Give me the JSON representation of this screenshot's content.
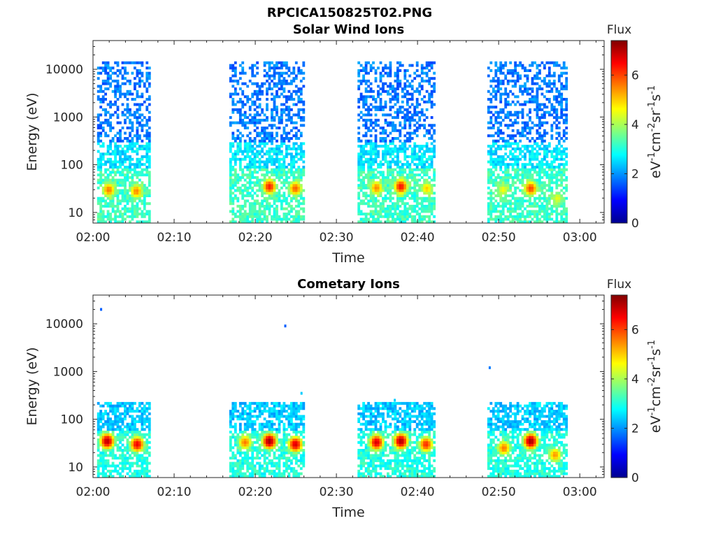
{
  "figure": {
    "title": "RPCICA150825T02.PNG",
    "colormap": [
      "#00008f",
      "#0000ff",
      "#0080ff",
      "#00ffff",
      "#80ff80",
      "#ffff00",
      "#ff8000",
      "#ff0000",
      "#800000"
    ]
  },
  "chart_data": [
    {
      "type": "heatmap",
      "title": "Solar Wind Ions",
      "xlabel": "Time",
      "ylabel": "Energy (eV)",
      "x_ticks": [
        "02:00",
        "02:10",
        "02:20",
        "02:30",
        "02:40",
        "02:50",
        "03:00"
      ],
      "x_range_minutes": [
        0,
        63
      ],
      "y_scale": "log",
      "y_ticks": [
        10,
        100,
        1000,
        10000
      ],
      "y_tick_labels": [
        "10",
        "100",
        "1000",
        "10000"
      ],
      "y_range": [
        6,
        40000
      ],
      "colorbar": {
        "label": "Flux",
        "units": "eV-1cm-2sr-1s-1",
        "ticks": [
          0,
          2,
          4,
          6
        ],
        "range": [
          0,
          7.4
        ]
      },
      "data_blocks_minutes": [
        [
          0.5,
          6.8
        ],
        [
          16.8,
          26.1
        ],
        [
          32.6,
          42.0
        ],
        [
          48.6,
          58.3
        ]
      ],
      "background_levels": [
        {
          "energy_range_eV": [
            300,
            15000
          ],
          "flux": 1.8
        },
        {
          "energy_range_eV": [
            80,
            300
          ],
          "flux": 2.6
        },
        {
          "energy_range_eV": [
            6,
            80
          ],
          "flux": 3.2
        }
      ],
      "peaks": [
        {
          "time_min": 1.8,
          "energy_eV": 30,
          "flux": 5.6
        },
        {
          "time_min": 5.2,
          "energy_eV": 28,
          "flux": 5.5
        },
        {
          "time_min": 21.6,
          "energy_eV": 35,
          "flux": 6.3
        },
        {
          "time_min": 24.8,
          "energy_eV": 32,
          "flux": 5.8
        },
        {
          "time_min": 34.8,
          "energy_eV": 33,
          "flux": 5.5
        },
        {
          "time_min": 37.8,
          "energy_eV": 35,
          "flux": 6.4
        },
        {
          "time_min": 41.0,
          "energy_eV": 32,
          "flux": 5.0
        },
        {
          "time_min": 50.4,
          "energy_eV": 30,
          "flux": 4.6
        },
        {
          "time_min": 53.8,
          "energy_eV": 32,
          "flux": 6.0
        },
        {
          "time_min": 57.1,
          "energy_eV": 20,
          "flux": 4.5
        }
      ]
    },
    {
      "type": "heatmap",
      "title": "Cometary Ions",
      "xlabel": "Time",
      "ylabel": "Energy (eV)",
      "x_ticks": [
        "02:00",
        "02:10",
        "02:20",
        "02:30",
        "02:40",
        "02:50",
        "03:00"
      ],
      "x_range_minutes": [
        0,
        63
      ],
      "y_scale": "log",
      "y_ticks": [
        10,
        100,
        1000,
        10000
      ],
      "y_tick_labels": [
        "10",
        "100",
        "1000",
        "10000"
      ],
      "y_range": [
        6,
        40000
      ],
      "colorbar": {
        "label": "Flux",
        "units": "eV-1cm-2sr-1s-1",
        "ticks": [
          0,
          2,
          4,
          6
        ],
        "range": [
          0,
          7.4
        ]
      },
      "data_blocks_minutes": [
        [
          0.5,
          6.8
        ],
        [
          16.8,
          26.1
        ],
        [
          32.6,
          42.0
        ],
        [
          48.6,
          58.3
        ]
      ],
      "background_levels": [
        {
          "energy_range_eV": [
            60,
            220
          ],
          "flux": 2.4
        },
        {
          "energy_range_eV": [
            6,
            60
          ],
          "flux": 3.0
        }
      ],
      "peaks": [
        {
          "time_min": 1.6,
          "energy_eV": 35,
          "flux": 7.0
        },
        {
          "time_min": 5.3,
          "energy_eV": 30,
          "flux": 6.6
        },
        {
          "time_min": 18.6,
          "energy_eV": 33,
          "flux": 5.6
        },
        {
          "time_min": 21.6,
          "energy_eV": 35,
          "flux": 7.2
        },
        {
          "time_min": 24.8,
          "energy_eV": 30,
          "flux": 6.8
        },
        {
          "time_min": 34.8,
          "energy_eV": 33,
          "flux": 6.8
        },
        {
          "time_min": 37.8,
          "energy_eV": 35,
          "flux": 7.1
        },
        {
          "time_min": 40.9,
          "energy_eV": 30,
          "flux": 6.2
        },
        {
          "time_min": 50.5,
          "energy_eV": 25,
          "flux": 5.6
        },
        {
          "time_min": 53.8,
          "energy_eV": 35,
          "flux": 7.2
        },
        {
          "time_min": 56.8,
          "energy_eV": 18,
          "flux": 5.4
        }
      ],
      "isolated_points": [
        {
          "time_min": 1.0,
          "energy_eV": 20000,
          "flux": 1.6
        },
        {
          "time_min": 23.7,
          "energy_eV": 9000,
          "flux": 1.6
        },
        {
          "time_min": 48.9,
          "energy_eV": 1200,
          "flux": 1.8
        },
        {
          "time_min": 25.7,
          "energy_eV": 350,
          "flux": 2.4
        },
        {
          "time_min": 37.2,
          "energy_eV": 250,
          "flux": 2.4
        }
      ]
    }
  ]
}
